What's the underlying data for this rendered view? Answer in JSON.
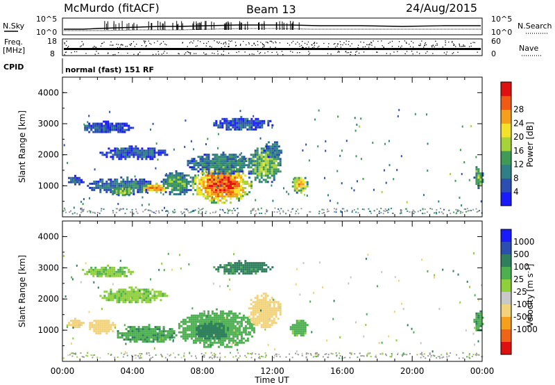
{
  "header": {
    "station": "McMurdo (fitACF)",
    "beam": "Beam 13",
    "date": "24/Aug/2015"
  },
  "status_panels": {
    "nsky_label": "N.Sky",
    "nsky_ticks": [
      "10^5",
      "10^0"
    ],
    "nsearch_label": "N.Search",
    "nsearch_ticks": [
      "10^5",
      "10^0"
    ],
    "freq_label": "Freq.",
    "freq_unit": "[MHz]",
    "freq_ticks": [
      "18",
      "8"
    ],
    "nave_label": "Nave",
    "nave_ticks": [
      "60",
      "0"
    ],
    "cpid_label": "CPID",
    "cpid_text": "normal (fast) 151 RF"
  },
  "colors": {
    "power_scale": [
      "#1a1aff",
      "#2b4fb0",
      "#2f7f86",
      "#3f9a55",
      "#a6d23a",
      "#f2e22a",
      "#f5a01a",
      "#f05a14",
      "#e01010"
    ],
    "velocity_scale": [
      "#1a1aff",
      "#2b4fb0",
      "#2f7f5e",
      "#4caf50",
      "#8fd03a",
      "#c8c8c8",
      "#f2d27a",
      "#f5a01a",
      "#f06418",
      "#e01010"
    ],
    "ground_scatter": "#9a9a9a"
  },
  "chart_data": [
    {
      "type": "heatmap",
      "name": "power",
      "ylabel": "Slant Range [km]",
      "yticks": [
        "1000",
        "2000",
        "3000",
        "4000"
      ],
      "ylim": [
        0,
        4500
      ],
      "xlim": [
        0,
        24
      ],
      "colorbar_label": "Power [dB]",
      "colorbar_ticks": [
        "4",
        "8",
        "12",
        "16",
        "20",
        "24",
        "28"
      ],
      "colorbar_range": [
        0,
        30
      ],
      "echo_regions": [
        {
          "t0": 0.2,
          "t1": 1.2,
          "r0": 1050,
          "r1": 1350,
          "value": 6
        },
        {
          "t0": 1.4,
          "t1": 5.5,
          "r0": 750,
          "r1": 1300,
          "value": 9
        },
        {
          "t0": 2.8,
          "t1": 4.0,
          "r0": 700,
          "r1": 1000,
          "value": 16
        },
        {
          "t0": 4.5,
          "t1": 6.0,
          "r0": 800,
          "r1": 1100,
          "value": 24
        },
        {
          "t0": 5.5,
          "t1": 7.5,
          "r0": 700,
          "r1": 1500,
          "value": 12
        },
        {
          "t0": 7.3,
          "t1": 10.8,
          "r0": 450,
          "r1": 1700,
          "value": 26
        },
        {
          "t0": 7.0,
          "t1": 11.0,
          "r0": 1400,
          "r1": 2100,
          "value": 10
        },
        {
          "t0": 10.5,
          "t1": 12.5,
          "r0": 1100,
          "r1": 2300,
          "value": 14
        },
        {
          "t0": 11.5,
          "t1": 12.5,
          "r0": 1900,
          "r1": 2500,
          "value": 8
        },
        {
          "t0": 13.0,
          "t1": 14.0,
          "r0": 800,
          "r1": 1350,
          "value": 20
        },
        {
          "t0": 1.0,
          "t1": 4.0,
          "r0": 2700,
          "r1": 3100,
          "value": 5
        },
        {
          "t0": 8.5,
          "t1": 12.0,
          "r0": 2800,
          "r1": 3250,
          "value": 6
        },
        {
          "t0": 2.0,
          "t1": 6.0,
          "r0": 1850,
          "r1": 2300,
          "value": 6
        },
        {
          "t0": 23.5,
          "t1": 24.0,
          "r0": 950,
          "r1": 1700,
          "value": 14
        }
      ]
    },
    {
      "type": "heatmap",
      "name": "velocity",
      "ylabel": "Slant Range [km]",
      "yticks": [
        "1000",
        "2000",
        "3000",
        "4000"
      ],
      "ylim": [
        0,
        4500
      ],
      "xlim": [
        0,
        24
      ],
      "xlabel": "Time UT",
      "xticks": [
        "00:00",
        "04:00",
        "08:00",
        "12:00",
        "16:00",
        "20:00",
        "00:00"
      ],
      "colorbar_label": "Velocity [m s^-1]",
      "colorbar_ticks": [
        "1000",
        "500",
        "100",
        "25",
        "-25",
        "-100",
        "-500",
        "-1000"
      ],
      "echo_regions": [
        {
          "t0": 0.2,
          "t1": 1.2,
          "r0": 1100,
          "r1": 1400,
          "value": -150
        },
        {
          "t0": 1.4,
          "t1": 3.0,
          "r0": 900,
          "r1": 1400,
          "value": -200
        },
        {
          "t0": 3.0,
          "t1": 6.5,
          "r0": 600,
          "r1": 1200,
          "value": 80
        },
        {
          "t0": 6.5,
          "t1": 11.0,
          "r0": 450,
          "r1": 1700,
          "value": 60
        },
        {
          "t0": 7.5,
          "t1": 9.5,
          "r0": 700,
          "r1": 1300,
          "value": 300
        },
        {
          "t0": 10.5,
          "t1": 12.5,
          "r0": 1100,
          "r1": 2200,
          "value": -200
        },
        {
          "t0": 13.0,
          "t1": 14.0,
          "r0": 800,
          "r1": 1400,
          "value": 50
        },
        {
          "t0": 2.0,
          "t1": 6.0,
          "r0": 1900,
          "r1": 2400,
          "value": 10
        },
        {
          "t0": 1.0,
          "t1": 4.0,
          "r0": 2700,
          "r1": 3100,
          "value": 10
        },
        {
          "t0": 8.5,
          "t1": 12.0,
          "r0": 2800,
          "r1": 3250,
          "value": 150
        },
        {
          "t0": 23.5,
          "t1": 24.0,
          "r0": 950,
          "r1": 1700,
          "value": 80
        }
      ]
    }
  ]
}
